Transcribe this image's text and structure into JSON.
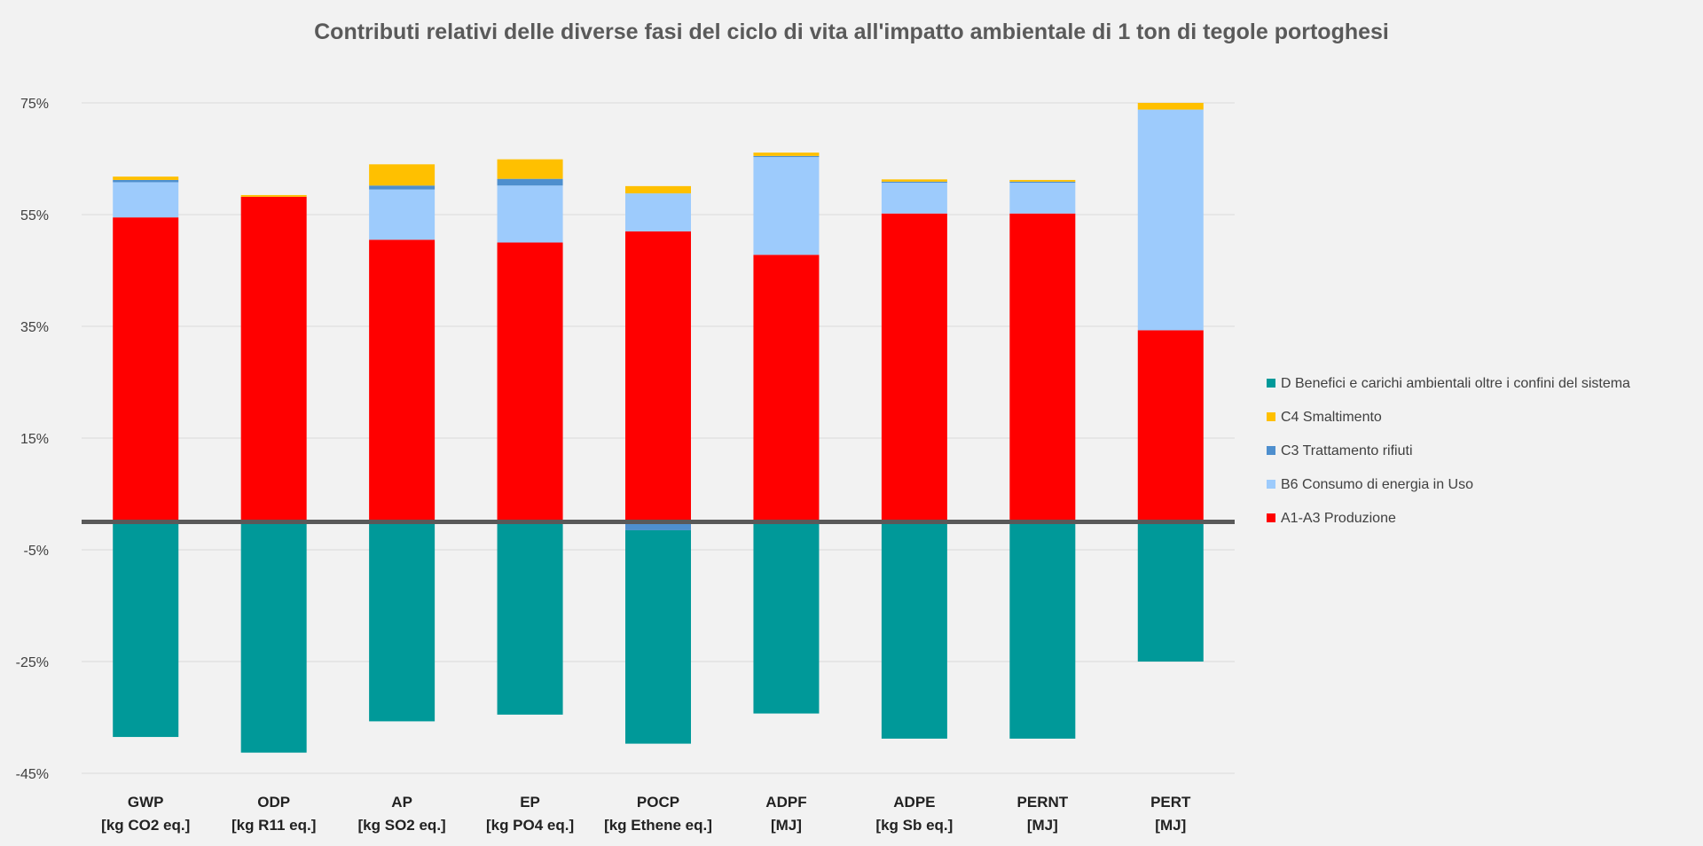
{
  "chart_data": {
    "type": "bar",
    "stacked": true,
    "title": "Contributi relativi delle diverse fasi del ciclo di vita all'impatto ambientale di 1 ton di tegole portoghesi",
    "categories": [
      [
        "GWP",
        "[kg CO2 eq.]"
      ],
      [
        "ODP",
        "[kg R11 eq.]"
      ],
      [
        "AP",
        "[kg SO2 eq.]"
      ],
      [
        "EP",
        "[kg PO4 eq.]"
      ],
      [
        "POCP",
        "[kg Ethene eq.]"
      ],
      [
        "ADPF",
        "[MJ]"
      ],
      [
        "ADPE",
        "[kg Sb eq.]"
      ],
      [
        "PERNT",
        "[MJ]"
      ],
      [
        "PERT",
        "[MJ]"
      ]
    ],
    "ylim": [
      -45,
      75
    ],
    "yticks": [
      75,
      55,
      35,
      15,
      -5,
      -25,
      -45
    ],
    "ytick_labels": [
      "75%",
      "55%",
      "35%",
      "15%",
      "-5%",
      "-25%",
      "-45%"
    ],
    "zero_line_value": 0,
    "grid": true,
    "legend_position": "right",
    "legend_order": [
      4,
      3,
      2,
      1,
      0
    ],
    "series": [
      {
        "name": "A1-A3 Produzione",
        "color": "#ff0000",
        "values": [
          54.5,
          58.2,
          50.5,
          50,
          52,
          47.8,
          55.2,
          55.2,
          34.3
        ]
      },
      {
        "name": "B6 Consumo di energia in Uso",
        "color": "#9dcbfc",
        "values": [
          6.3,
          0,
          9,
          10.2,
          6.8,
          17.5,
          5.5,
          5.5,
          39.5
        ]
      },
      {
        "name": "C3 Trattamento rifiuti",
        "color": "#4e8fce",
        "values": [
          0.4,
          0,
          0.7,
          1.2,
          -1.5,
          0.2,
          0.2,
          0.2,
          0
        ]
      },
      {
        "name": "C4 Smaltimento",
        "color": "#ffc000",
        "values": [
          0.6,
          0.3,
          3.8,
          3.5,
          1.3,
          0.6,
          0.4,
          0.3,
          1.2
        ]
      },
      {
        "name": "D Benefici e carichi ambientali oltre i confini del sistema",
        "color": "#009999",
        "values": [
          -38.5,
          -41.3,
          -35.7,
          -34.5,
          -38.2,
          -34.3,
          -38.8,
          -38.8,
          -25
        ]
      }
    ]
  }
}
